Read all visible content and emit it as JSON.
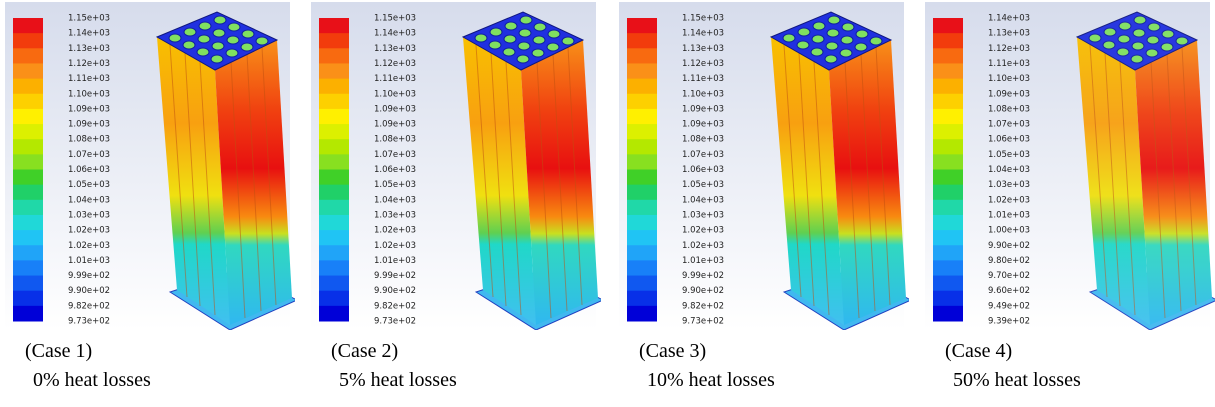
{
  "panels": [
    {
      "colorbar": [
        "1.15e+03",
        "1.14e+03",
        "1.13e+03",
        "1.12e+03",
        "1.11e+03",
        "1.10e+03",
        "1.09e+03",
        "1.09e+03",
        "1.08e+03",
        "1.07e+03",
        "1.06e+03",
        "1.05e+03",
        "1.04e+03",
        "1.03e+03",
        "1.02e+03",
        "1.02e+03",
        "1.01e+03",
        "9.99e+02",
        "9.90e+02",
        "9.82e+02",
        "9.73e+02"
      ],
      "case": "(Case 1)",
      "caption": "0% heat losses"
    },
    {
      "colorbar": [
        "1.15e+03",
        "1.14e+03",
        "1.13e+03",
        "1.12e+03",
        "1.11e+03",
        "1.10e+03",
        "1.09e+03",
        "1.09e+03",
        "1.08e+03",
        "1.07e+03",
        "1.06e+03",
        "1.05e+03",
        "1.04e+03",
        "1.03e+03",
        "1.02e+03",
        "1.02e+03",
        "1.01e+03",
        "9.99e+02",
        "9.90e+02",
        "9.82e+02",
        "9.73e+02"
      ],
      "case": "(Case 2)",
      "caption": "5% heat losses"
    },
    {
      "colorbar": [
        "1.15e+03",
        "1.14e+03",
        "1.13e+03",
        "1.12e+03",
        "1.11e+03",
        "1.10e+03",
        "1.09e+03",
        "1.09e+03",
        "1.08e+03",
        "1.07e+03",
        "1.06e+03",
        "1.05e+03",
        "1.04e+03",
        "1.03e+03",
        "1.02e+03",
        "1.02e+03",
        "1.01e+03",
        "9.99e+02",
        "9.90e+02",
        "9.82e+02",
        "9.73e+02"
      ],
      "case": "(Case 3)",
      "caption": "10% heat losses"
    },
    {
      "colorbar": [
        "1.14e+03",
        "1.13e+03",
        "1.12e+03",
        "1.11e+03",
        "1.10e+03",
        "1.09e+03",
        "1.08e+03",
        "1.07e+03",
        "1.06e+03",
        "1.05e+03",
        "1.04e+03",
        "1.03e+03",
        "1.02e+03",
        "1.01e+03",
        "1.00e+03",
        "9.90e+02",
        "9.80e+02",
        "9.70e+02",
        "9.60e+02",
        "9.49e+02",
        "9.39e+02"
      ],
      "case": "(Case 4)",
      "caption": "50% heat losses"
    }
  ]
}
